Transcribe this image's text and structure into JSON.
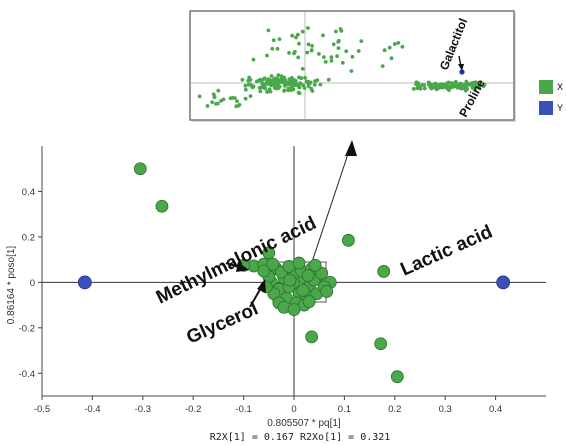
{
  "chart_data": [
    {
      "type": "scatter",
      "title": "",
      "xlabel": "0.805507 * pq[1]",
      "ylabel": "0.86164 * poso[1]",
      "xlim": [
        -0.5,
        0.5
      ],
      "ylim": [
        -0.5,
        0.6
      ],
      "x_ticks": [
        "-0.5",
        "-0.4",
        "-0.3",
        "-0.2",
        "-0.1",
        "0",
        "0.1",
        "0.2",
        "0.3",
        "0.4"
      ],
      "y_ticks": [
        "0.4",
        "0.2",
        "0",
        "-0.2",
        "-0.4"
      ],
      "footer": "R2X[1] = 0.167   R2Xo[1] = 0.321",
      "grid": false,
      "legend": "right",
      "series": [
        {
          "name": "X",
          "color": "#4aa84a",
          "points": [
            [
              -0.305,
              0.5
            ],
            [
              -0.262,
              0.335
            ],
            [
              -0.08,
              0.072
            ],
            [
              -0.06,
              0.08
            ],
            [
              -0.05,
              0.13
            ],
            [
              -0.1,
              0.075
            ],
            [
              0.108,
              0.185
            ],
            [
              0.178,
              0.048
            ],
            [
              0.172,
              -0.27
            ],
            [
              0.205,
              -0.415
            ],
            [
              0.035,
              -0.24
            ],
            [
              0.072,
              0.0
            ],
            [
              0.05,
              0.03
            ],
            [
              -0.035,
              0.06
            ],
            [
              -0.045,
              0.0
            ],
            [
              0.0,
              0.0
            ],
            [
              -0.02,
              0.02
            ],
            [
              0.02,
              0.02
            ],
            [
              0.01,
              -0.05
            ],
            [
              -0.015,
              -0.07
            ],
            [
              -0.03,
              -0.03
            ],
            [
              0.03,
              -0.02
            ],
            [
              0.0,
              0.04
            ],
            [
              -0.01,
              -0.02
            ],
            [
              0.015,
              0.05
            ],
            [
              -0.025,
              0.045
            ],
            [
              0.025,
              -0.06
            ],
            [
              0.04,
              0.01
            ],
            [
              -0.04,
              -0.05
            ],
            [
              0.005,
              -0.09
            ],
            [
              0.045,
              -0.05
            ],
            [
              -0.03,
              -0.09
            ],
            [
              0.02,
              -0.1
            ],
            [
              0.06,
              -0.02
            ],
            [
              -0.05,
              0.025
            ],
            [
              0.035,
              0.06
            ],
            [
              -0.01,
              0.07
            ],
            [
              0.055,
              0.04
            ],
            [
              -0.055,
              -0.02
            ],
            [
              0.01,
              0.085
            ],
            [
              0.03,
              -0.085
            ],
            [
              -0.02,
              -0.11
            ],
            [
              0.065,
              -0.04
            ],
            [
              -0.06,
              0.05
            ],
            [
              0.0,
              -0.12
            ],
            [
              0.042,
              0.075
            ],
            [
              -0.042,
              0.08
            ],
            [
              0.018,
              -0.035
            ],
            [
              -0.008,
              0.01
            ],
            [
              0.028,
              0.03
            ]
          ]
        },
        {
          "name": "Y",
          "color": "#3b4fb8",
          "points": [
            [
              -0.415,
              0.0
            ],
            [
              0.415,
              0.0
            ]
          ]
        }
      ],
      "annotations": [
        "Methylmalonic acid",
        "Lactic acid",
        "Glycerol"
      ]
    },
    {
      "type": "scatter",
      "title": "",
      "annotations": [
        "Galactitol",
        "Proline"
      ]
    }
  ]
}
